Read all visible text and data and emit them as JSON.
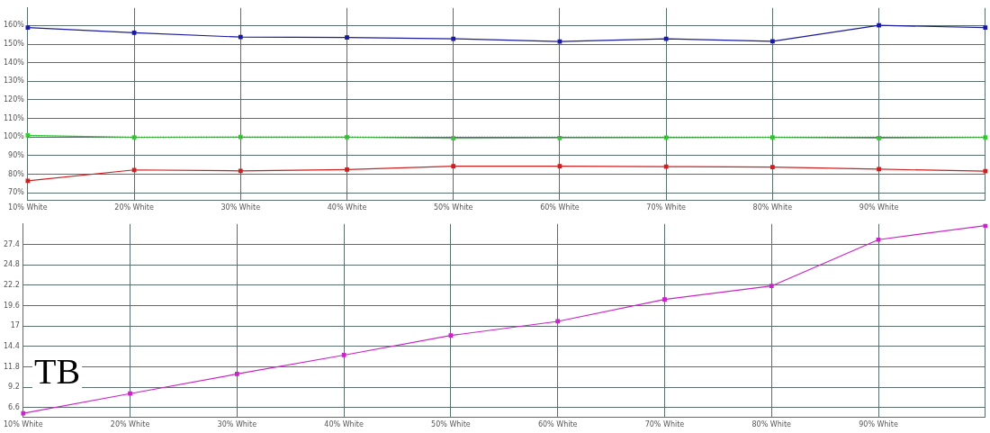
{
  "chart_data": [
    {
      "type": "line",
      "categories": [
        "10% White",
        "20% White",
        "30% White",
        "40% White",
        "50% White",
        "60% White",
        "70% White",
        "80% White",
        "90% White",
        null
      ],
      "series": [
        {
          "color": "#1a1aa0",
          "values": [
            158.9,
            156.1,
            153.8,
            153.6,
            152.9,
            151.4,
            152.9,
            151.5,
            160.1,
            158.9
          ]
        },
        {
          "color": "#33cc33",
          "values": [
            100.9,
            99.8,
            100,
            99.9,
            99.3,
            99.5,
            99.7,
            99.8,
            99.4,
            99.8
          ]
        },
        {
          "color": "#cc2020",
          "values": [
            76.4,
            82.3,
            81.8,
            82.5,
            84.3,
            84.3,
            84.1,
            83.8,
            82.7,
            81.6
          ]
        }
      ],
      "ylim": [
        66,
        169.5
      ],
      "yticks": [
        {
          "value": 70,
          "label": "70%"
        },
        {
          "value": 80,
          "label": "80%"
        },
        {
          "value": 90,
          "label": "90%"
        },
        {
          "value": 100,
          "label": "100%"
        },
        {
          "value": 110,
          "label": "110%"
        },
        {
          "value": 120,
          "label": "120%"
        },
        {
          "value": 130,
          "label": "130%"
        },
        {
          "value": 140,
          "label": "140%"
        },
        {
          "value": 150,
          "label": "150%"
        },
        {
          "value": 160,
          "label": "160%"
        }
      ],
      "ref_lines": [
        {
          "axis": "y",
          "value": 100,
          "line_style": "dotted",
          "color": "#555555"
        }
      ],
      "grid": true,
      "legend": false,
      "marker": "square",
      "line_style": "solid"
    },
    {
      "type": "line",
      "categories": [
        "10% White",
        "20% White",
        "30% White",
        "40% White",
        "50% White",
        "60% White",
        "70% White",
        "80% White",
        "90% White",
        null
      ],
      "series": [
        {
          "color": "#cc22cc",
          "values": [
            5.9,
            8.4,
            10.9,
            13.3,
            15.8,
            17.6,
            20.4,
            22.1,
            28.0,
            29.8
          ]
        }
      ],
      "ylim": [
        5.4,
        30
      ],
      "yticks": [
        6.6,
        9.2,
        11.8,
        14.4,
        17,
        19.6,
        22.2,
        24.8,
        27.4
      ],
      "annotations": [
        "TB"
      ],
      "grid": true,
      "legend": false,
      "marker": "square",
      "line_style": "solid"
    }
  ]
}
